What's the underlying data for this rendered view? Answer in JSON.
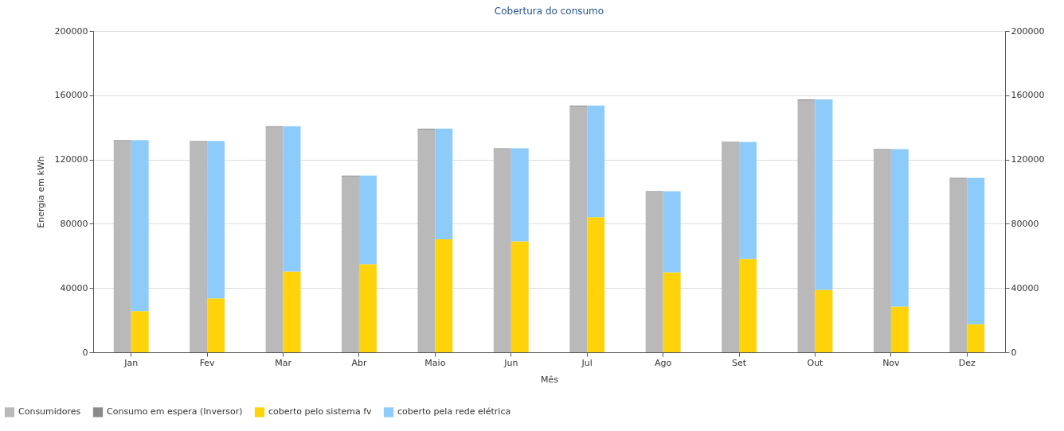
{
  "chart_data": {
    "type": "bar",
    "title": "Cobertura do consumo",
    "xlabel": "Mês",
    "ylabel": "Energia em kWh",
    "categories": [
      "Jan",
      "Fev",
      "Mar",
      "Abr",
      "Maio",
      "Jun",
      "Jul",
      "Ago",
      "Set",
      "Out",
      "Nov",
      "Dez"
    ],
    "stacked": true,
    "series": [
      {
        "name": "Consumidores",
        "color": "#b9b9b9",
        "values": [
          131500,
          131000,
          140200,
          109500,
          138700,
          126500,
          153100,
          99800,
          130500,
          156900,
          126000,
          108100
        ]
      },
      {
        "name": "Consumo em espera (Inversor)",
        "color": "#8a8a8a",
        "values": [
          500,
          500,
          500,
          500,
          500,
          500,
          500,
          500,
          500,
          500,
          500,
          500
        ]
      },
      {
        "name": "coberto pelo sistema fv",
        "color": "#ffd30a",
        "axis": "y2",
        "values": [
          25600,
          33500,
          50300,
          54800,
          70300,
          69100,
          84000,
          49800,
          58100,
          38900,
          28500,
          17500
        ]
      },
      {
        "name": "coberto pela rede elétrica",
        "color": "#8ccbfa",
        "axis": "y2",
        "values": [
          106400,
          98000,
          90400,
          55200,
          68900,
          57900,
          69600,
          50500,
          72900,
          118500,
          98000,
          91100
        ]
      }
    ],
    "ylim": [
      0,
      200000
    ],
    "yticks": [
      0,
      40000,
      80000,
      120000,
      160000,
      200000
    ],
    "y2lim": [
      0,
      200000
    ],
    "y2ticks": [
      0,
      40000,
      80000,
      120000,
      160000,
      200000
    ],
    "grid": "y",
    "legend": "bottom left"
  }
}
